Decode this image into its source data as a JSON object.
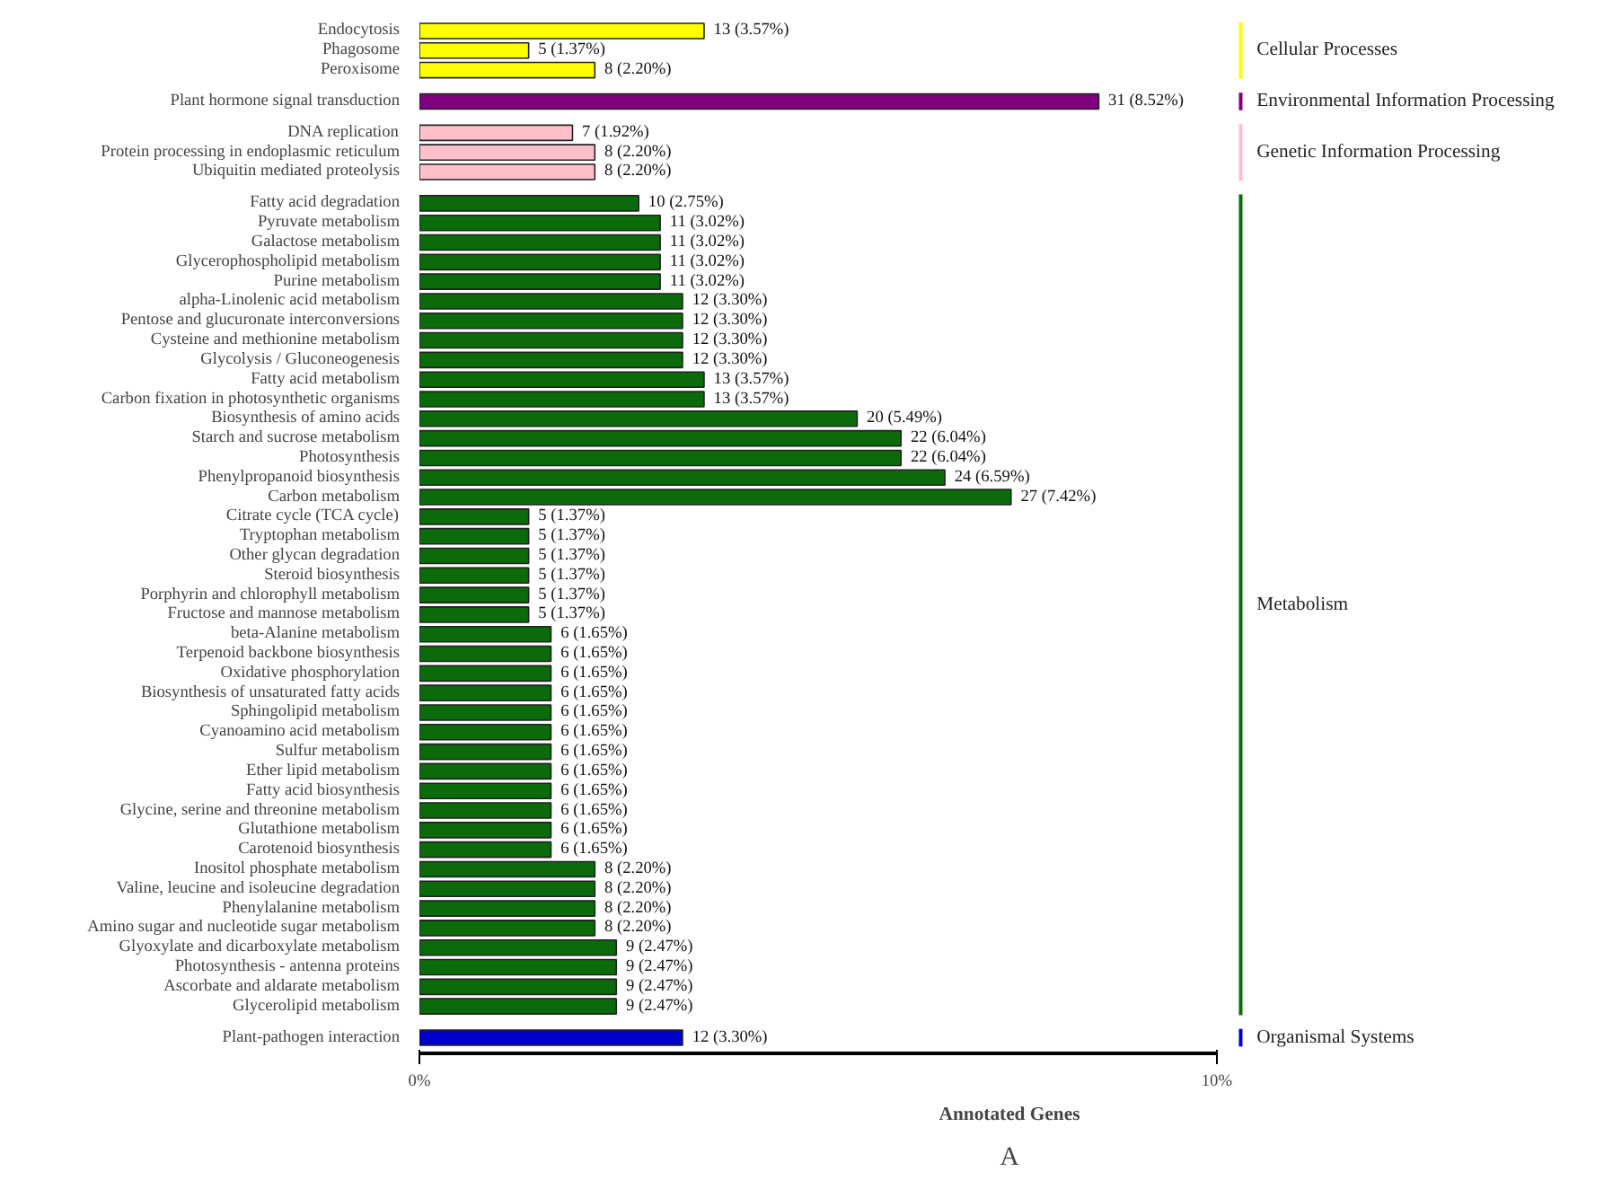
{
  "chart_data": {
    "type": "bar",
    "orientation": "horizontal",
    "xlabel": "Annotated Genes",
    "annotations": [
      "A"
    ],
    "categories": [
      "Endocytosis",
      "Phagosome",
      "Peroxisome",
      "Plant hormone signal transduction",
      "DNA replication",
      "Protein processing in endoplasmic reticulum",
      "Ubiquitin mediated proteolysis",
      "Fatty acid degradation",
      "Pyruvate metabolism",
      "Galactose metabolism",
      "Glycerophospholipid metabolism",
      "Purine metabolism",
      "alpha-Linolenic acid metabolism",
      "Pentose and glucuronate interconversions",
      "Cysteine and methionine metabolism",
      "Glycolysis / Gluconeogenesis",
      "Fatty acid metabolism",
      "Carbon fixation in photosynthetic organisms",
      "Biosynthesis of amino acids",
      "Starch and sucrose metabolism",
      "Photosynthesis",
      "Phenylpropanoid biosynthesis",
      "Carbon metabolism",
      "Citrate cycle (TCA cycle)",
      "Tryptophan metabolism",
      "Other glycan degradation",
      "Steroid biosynthesis",
      "Porphyrin and chlorophyll metabolism",
      "Fructose and mannose metabolism",
      "beta-Alanine metabolism",
      "Terpenoid backbone biosynthesis",
      "Oxidative phosphorylation",
      "Biosynthesis of unsaturated fatty acids",
      "Sphingolipid metabolism",
      "Cyanoamino acid metabolism",
      "Sulfur metabolism",
      "Ether lipid metabolism",
      "Fatty acid biosynthesis",
      "Glycine, serine and threonine metabolism",
      "Glutathione metabolism",
      "Carotenoid biosynthesis",
      "Inositol phosphate metabolism",
      "Valine, leucine and isoleucine degradation",
      "Phenylalanine metabolism",
      "Amino sugar and nucleotide sugar metabolism",
      "Glyoxylate and dicarboxylate metabolism",
      "Photosynthesis - antenna proteins",
      "Ascorbate and aldarate metabolism",
      "Glycerolipid metabolism",
      "Plant-pathogen interaction"
    ],
    "series": [
      {
        "name": "Cellular Processes",
        "color": "#ffff00",
        "values": [
          3.57,
          1.37,
          2.2,
          null,
          null,
          null,
          null,
          null,
          null,
          null,
          null,
          null,
          null,
          null,
          null,
          null,
          null,
          null,
          null,
          null,
          null,
          null,
          null,
          null,
          null,
          null,
          null,
          null,
          null,
          null,
          null,
          null,
          null,
          null,
          null,
          null,
          null,
          null,
          null,
          null,
          null,
          null,
          null,
          null,
          null,
          null,
          null,
          null,
          null,
          null
        ],
        "value_labels": [
          "13 (3.57%)",
          "5 (1.37%)",
          "8 (2.20%)",
          null,
          null,
          null,
          null,
          null,
          null,
          null,
          null,
          null,
          null,
          null,
          null,
          null,
          null,
          null,
          null,
          null,
          null,
          null,
          null,
          null,
          null,
          null,
          null,
          null,
          null,
          null,
          null,
          null,
          null,
          null,
          null,
          null,
          null,
          null,
          null,
          null,
          null,
          null,
          null,
          null,
          null,
          null,
          null,
          null,
          null,
          null
        ]
      },
      {
        "name": "Environmental Information Processing",
        "color": "#800080",
        "values": [
          null,
          null,
          null,
          8.52,
          null,
          null,
          null,
          null,
          null,
          null,
          null,
          null,
          null,
          null,
          null,
          null,
          null,
          null,
          null,
          null,
          null,
          null,
          null,
          null,
          null,
          null,
          null,
          null,
          null,
          null,
          null,
          null,
          null,
          null,
          null,
          null,
          null,
          null,
          null,
          null,
          null,
          null,
          null,
          null,
          null,
          null,
          null,
          null,
          null,
          null
        ],
        "value_labels": [
          null,
          null,
          null,
          "31 (8.52%)",
          null,
          null,
          null,
          null,
          null,
          null,
          null,
          null,
          null,
          null,
          null,
          null,
          null,
          null,
          null,
          null,
          null,
          null,
          null,
          null,
          null,
          null,
          null,
          null,
          null,
          null,
          null,
          null,
          null,
          null,
          null,
          null,
          null,
          null,
          null,
          null,
          null,
          null,
          null,
          null,
          null,
          null,
          null,
          null,
          null,
          null
        ]
      },
      {
        "name": "Genetic Information Processing",
        "color": "#ffc0cb",
        "values": [
          null,
          null,
          null,
          null,
          1.92,
          2.2,
          2.2,
          null,
          null,
          null,
          null,
          null,
          null,
          null,
          null,
          null,
          null,
          null,
          null,
          null,
          null,
          null,
          null,
          null,
          null,
          null,
          null,
          null,
          null,
          null,
          null,
          null,
          null,
          null,
          null,
          null,
          null,
          null,
          null,
          null,
          null,
          null,
          null,
          null,
          null,
          null,
          null,
          null,
          null,
          null
        ],
        "value_labels": [
          null,
          null,
          null,
          null,
          "7 (1.92%)",
          "8 (2.20%)",
          "8 (2.20%)",
          null,
          null,
          null,
          null,
          null,
          null,
          null,
          null,
          null,
          null,
          null,
          null,
          null,
          null,
          null,
          null,
          null,
          null,
          null,
          null,
          null,
          null,
          null,
          null,
          null,
          null,
          null,
          null,
          null,
          null,
          null,
          null,
          null,
          null,
          null,
          null,
          null,
          null,
          null,
          null,
          null,
          null,
          null
        ]
      },
      {
        "name": "Metabolism",
        "color": "#0b6b0b",
        "values": [
          null,
          null,
          null,
          null,
          null,
          null,
          null,
          2.75,
          3.02,
          3.02,
          3.02,
          3.02,
          3.3,
          3.3,
          3.3,
          3.3,
          3.57,
          3.57,
          5.49,
          6.04,
          6.04,
          6.59,
          7.42,
          1.37,
          1.37,
          1.37,
          1.37,
          1.37,
          1.37,
          1.65,
          1.65,
          1.65,
          1.65,
          1.65,
          1.65,
          1.65,
          1.65,
          1.65,
          1.65,
          1.65,
          1.65,
          2.2,
          2.2,
          2.2,
          2.2,
          2.47,
          2.47,
          2.47,
          2.47,
          null
        ],
        "value_labels": [
          null,
          null,
          null,
          null,
          null,
          null,
          null,
          "10 (2.75%)",
          "11 (3.02%)",
          "11 (3.02%)",
          "11 (3.02%)",
          "11 (3.02%)",
          "12 (3.30%)",
          "12 (3.30%)",
          "12 (3.30%)",
          "12 (3.30%)",
          "13 (3.57%)",
          "13 (3.57%)",
          "20 (5.49%)",
          "22 (6.04%)",
          "22 (6.04%)",
          "24 (6.59%)",
          "27 (7.42%)",
          "5 (1.37%)",
          "5 (1.37%)",
          "5 (1.37%)",
          "5 (1.37%)",
          "5 (1.37%)",
          "5 (1.37%)",
          "6 (1.65%)",
          "6 (1.65%)",
          "6 (1.65%)",
          "6 (1.65%)",
          "6 (1.65%)",
          "6 (1.65%)",
          "6 (1.65%)",
          "6 (1.65%)",
          "6 (1.65%)",
          "6 (1.65%)",
          "6 (1.65%)",
          "6 (1.65%)",
          "8 (2.20%)",
          "8 (2.20%)",
          "8 (2.20%)",
          "8 (2.20%)",
          "9 (2.47%)",
          "9 (2.47%)",
          "9 (2.47%)",
          "9 (2.47%)",
          null
        ]
      },
      {
        "name": "Organismal Systems",
        "color": "#0000cd",
        "values": [
          null,
          null,
          null,
          null,
          null,
          null,
          null,
          null,
          null,
          null,
          null,
          null,
          null,
          null,
          null,
          null,
          null,
          null,
          null,
          null,
          null,
          null,
          null,
          null,
          null,
          null,
          null,
          null,
          null,
          null,
          null,
          null,
          null,
          null,
          null,
          null,
          null,
          null,
          null,
          null,
          null,
          null,
          null,
          null,
          null,
          null,
          null,
          null,
          null,
          3.3
        ],
        "value_labels": [
          null,
          null,
          null,
          null,
          null,
          null,
          null,
          null,
          null,
          null,
          null,
          null,
          null,
          null,
          null,
          null,
          null,
          null,
          null,
          null,
          null,
          null,
          null,
          null,
          null,
          null,
          null,
          null,
          null,
          null,
          null,
          null,
          null,
          null,
          null,
          null,
          null,
          null,
          null,
          null,
          null,
          null,
          null,
          null,
          null,
          null,
          null,
          null,
          null,
          "12 (3.30%)"
        ]
      }
    ],
    "xlim": [
      0,
      10
    ],
    "xticks": [
      {
        "value": 0,
        "label": "0%"
      },
      {
        "value": 10,
        "label": "10%"
      }
    ],
    "grid": false,
    "legend": "right"
  }
}
